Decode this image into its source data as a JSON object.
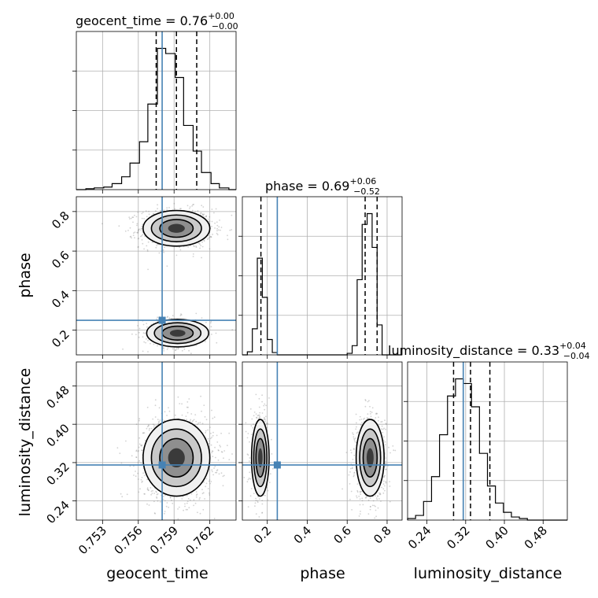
{
  "chart_data": {
    "type": "corner",
    "parameters": [
      "geocent_time",
      "phase",
      "luminosity_distance"
    ],
    "truths": {
      "geocent_time": 0.758,
      "phase": 0.25,
      "luminosity_distance": 0.315
    },
    "titles": [
      {
        "param": "geocent_time",
        "text": "geocent_time = 0.76",
        "sup": "+0.00",
        "sub": "−0.00"
      },
      {
        "param": "phase",
        "text": "phase = 0.69",
        "sup": "+0.06",
        "sub": "−0.52"
      },
      {
        "param": "luminosity_distance",
        "text": "luminosity_distance = 0.33",
        "sup": "+0.04",
        "sub": "−0.04"
      }
    ],
    "axis_labels": {
      "geocent_time": "geocent_time",
      "phase": "phase",
      "luminosity_distance": "luminosity_distance"
    },
    "ranges": {
      "geocent_time": [
        0.7508,
        0.7642
      ],
      "phase": [
        0.075,
        0.875
      ],
      "luminosity_distance": [
        0.2,
        0.53
      ]
    },
    "ticks": {
      "geocent_time": [
        "0.753",
        "0.756",
        "0.759",
        "0.762"
      ],
      "phase_x": [
        "0.2",
        "0.4",
        "0.6",
        "0.8"
      ],
      "phase_y": [
        "0.2",
        "0.4",
        "0.6",
        "0.8"
      ],
      "luminosity_distance": [
        "0.24",
        "0.32",
        "0.40",
        "0.48"
      ]
    },
    "quantiles": {
      "geocent_time": [
        0.7575,
        0.7592,
        0.7609
      ],
      "phase": [
        0.168,
        0.69,
        0.75
      ],
      "luminosity_distance": [
        0.295,
        0.33,
        0.37
      ]
    },
    "histograms": {
      "geocent_time": {
        "bin_edges": [
          0.7508,
          0.7516,
          0.7523,
          0.7531,
          0.7538,
          0.7546,
          0.7553,
          0.7561,
          0.7568,
          0.7576,
          0.7583,
          0.7591,
          0.7598,
          0.7606,
          0.7613,
          0.7621,
          0.7628,
          0.7636,
          0.7642
        ],
        "counts": [
          0,
          2,
          4,
          6,
          14,
          30,
          62,
          112,
          200,
          330,
          318,
          262,
          150,
          90,
          40,
          14,
          4,
          0
        ]
      },
      "phase": {
        "bin_edges": [
          0.075,
          0.1,
          0.125,
          0.15,
          0.175,
          0.2,
          0.225,
          0.25,
          0.275,
          0.3,
          0.325,
          0.35,
          0.375,
          0.4,
          0.425,
          0.45,
          0.475,
          0.5,
          0.525,
          0.55,
          0.575,
          0.6,
          0.625,
          0.65,
          0.675,
          0.7,
          0.725,
          0.75,
          0.775,
          0.8,
          0.825,
          0.85,
          0.875
        ],
        "counts": [
          0,
          4,
          34,
          126,
          75,
          20,
          3,
          0,
          0,
          0,
          0,
          0,
          0,
          0,
          0,
          0,
          0,
          0,
          0,
          0,
          0,
          2,
          12,
          98,
          170,
          184,
          140,
          39,
          0,
          0,
          0,
          0
        ]
      },
      "luminosity_distance": {
        "bin_edges": [
          0.2,
          0.2165,
          0.233,
          0.2495,
          0.266,
          0.2825,
          0.299,
          0.3155,
          0.332,
          0.3485,
          0.365,
          0.3815,
          0.398,
          0.4145,
          0.431,
          0.4475,
          0.464,
          0.4805,
          0.497,
          0.5135,
          0.53
        ],
        "counts": [
          2,
          6,
          24,
          56,
          110,
          160,
          182,
          176,
          146,
          86,
          44,
          22,
          10,
          4,
          2,
          0,
          0,
          0,
          0,
          0
        ]
      }
    },
    "modes_2d": {
      "geocent_time_phase": [
        {
          "x": 0.7592,
          "y": 0.715,
          "sx": 0.0014,
          "sy": 0.045,
          "weight": 0.72
        },
        {
          "x": 0.7593,
          "y": 0.185,
          "sx": 0.0013,
          "sy": 0.035,
          "weight": 0.28
        }
      ],
      "geocent_time_luminosity_distance": [
        {
          "x": 0.7592,
          "y": 0.33,
          "sx": 0.0014,
          "sy": 0.04,
          "weight": 1.0
        }
      ],
      "phase_luminosity_distance": [
        {
          "x": 0.165,
          "y": 0.33,
          "sx": 0.022,
          "sy": 0.04,
          "weight": 0.32
        },
        {
          "x": 0.715,
          "y": 0.33,
          "sx": 0.035,
          "sy": 0.04,
          "weight": 0.68
        }
      ]
    }
  }
}
